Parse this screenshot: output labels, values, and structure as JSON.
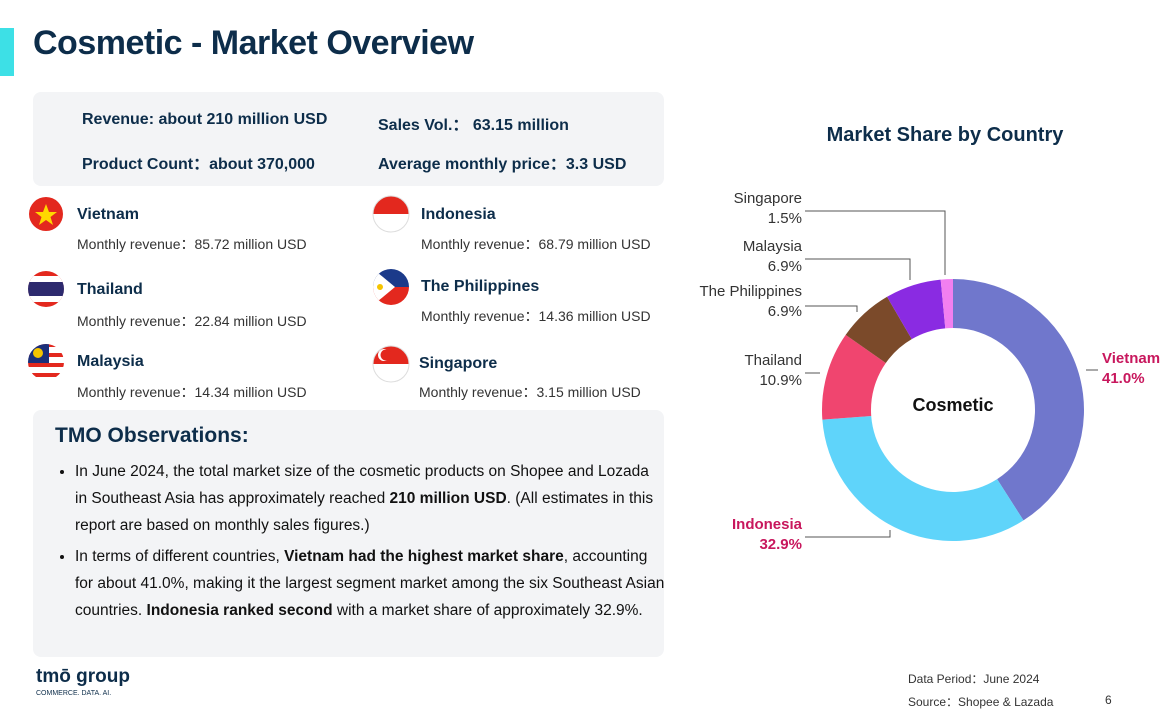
{
  "header": {
    "title": "Cosmetic - Market Overview"
  },
  "summary": {
    "revenue": "Revenue:  about 210 million USD",
    "sales_volume": "Sales Vol.：  63.15 million",
    "product_count": "Product Count：about 370,000",
    "average_price": "Average monthly price：3.3 USD"
  },
  "countries": [
    {
      "name": "Vietnam",
      "revenue": "Monthly revenue：85.72 million USD"
    },
    {
      "name": "Indonesia",
      "revenue": "Monthly revenue：68.79 million USD"
    },
    {
      "name": "Thailand",
      "revenue": "Monthly revenue：22.84 million USD"
    },
    {
      "name": "The Philippines",
      "revenue": "Monthly revenue：14.36 million USD"
    },
    {
      "name": "Malaysia",
      "revenue": "Monthly revenue：14.34 million USD"
    },
    {
      "name": "Singapore",
      "revenue": "Monthly revenue：3.15 million USD"
    }
  ],
  "observations": {
    "title": "TMO Observations:",
    "bullets": [
      [
        {
          "text": "In June 2024, the total market size of the cosmetic products on Shopee and Lozada in Southeast Asia has approximately reached ",
          "bold": false
        },
        {
          "text": "210 million USD",
          "bold": true
        },
        {
          "text": ". (All estimates in this report are based on monthly sales figures.)",
          "bold": false
        }
      ],
      [
        {
          "text": "In terms of different countries, ",
          "bold": false
        },
        {
          "text": "Vietnam had the highest market share",
          "bold": true
        },
        {
          "text": ", accounting for about 41.0%, making it the largest segment market among the six Southeast Asian countries. ",
          "bold": false
        },
        {
          "text": "Indonesia ranked second",
          "bold": true
        },
        {
          "text": " with a market share of approximately 32.9%.",
          "bold": false
        }
      ]
    ]
  },
  "chart_data": {
    "type": "pie",
    "title": "Market Share by Country",
    "center_label": "Cosmetic",
    "categories": [
      "Vietnam",
      "Indonesia",
      "Thailand",
      "The Philippines",
      "Malaysia",
      "Singapore"
    ],
    "values": [
      41.0,
      32.9,
      10.9,
      6.9,
      6.9,
      1.5
    ],
    "value_labels": [
      "41.0%",
      "32.9%",
      "10.9%",
      "6.9%",
      "6.9%",
      "1.5%"
    ],
    "colors": [
      "#7077cc",
      "#5fd4fa",
      "#f0456f",
      "#7b4a2a",
      "#8a2be2",
      "#f27ff0"
    ]
  },
  "footer": {
    "logo": "tmō group",
    "tagline": "COMMERCE. DATA. AI.",
    "data_period": "Data Period：June 2024",
    "source": "Source：Shopee & Lazada",
    "page_number": "6"
  }
}
